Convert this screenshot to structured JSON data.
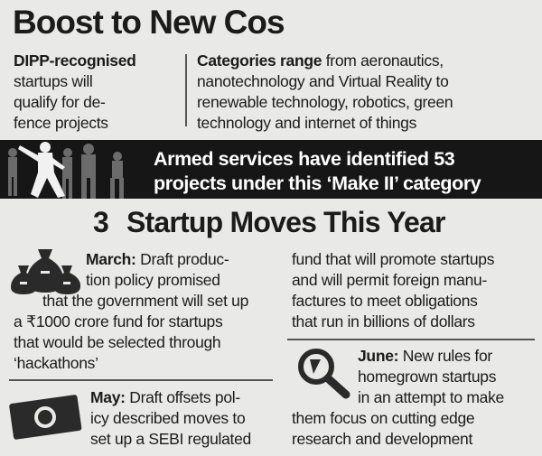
{
  "header": {
    "title": "Boost to New Cos"
  },
  "intro": {
    "left": {
      "lead": "DIPP-recognised",
      "lines": [
        "startups will",
        "qualify for de-",
        "fence projects"
      ]
    },
    "right": {
      "lead": "Categories range",
      "rest": " from aeronautics,",
      "lines": [
        "nanotechnology and Virtual Reality to",
        "renewable technology, robotics, green",
        "technology and internet of things"
      ]
    }
  },
  "banner": {
    "lines": [
      "Armed services have identified 53",
      "projects under this ‘Make II’ category"
    ]
  },
  "moves": {
    "number": "3",
    "title": "Startup Moves This Year",
    "march": {
      "label": "March:",
      "first": " Draft produc-",
      "lines": [
        "tion policy promised",
        "that the government will set up",
        "a ₹1000 crore fund for startups",
        "that would be selected through",
        "‘hackathons’"
      ]
    },
    "may": {
      "label": "May:",
      "first": " Draft offsets pol-",
      "lines": [
        "icy described moves to",
        "set up a SEBI regulated"
      ],
      "continued": [
        "fund that will promote startups",
        "and will permit foreign manu-",
        "factures to meet obligations",
        "that run in billions of dollars"
      ]
    },
    "june": {
      "label": "June:",
      "first": " New rules for",
      "lines": [
        "homegrown startups",
        "in an attempt to make",
        "them focus on cutting edge",
        "research and development"
      ]
    }
  }
}
